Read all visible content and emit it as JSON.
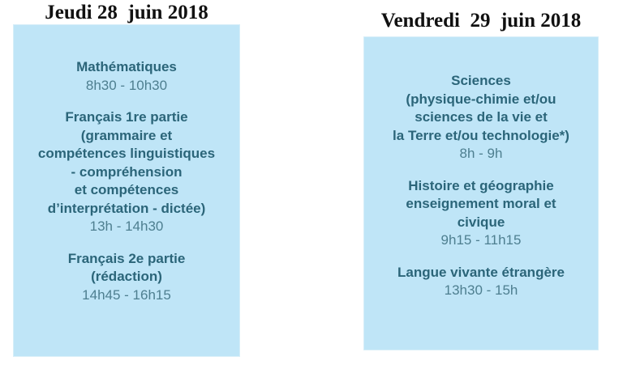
{
  "days": [
    {
      "title": "Jeudi 28  juin 2018",
      "exams": [
        {
          "subject": "Mathématiques",
          "time": "8h30 - 10h30"
        },
        {
          "subject": "Français 1re partie\n(grammaire et\ncompétences linguistiques\n- compréhension\net compétences\nd’interprétation - dictée)",
          "time": "13h - 14h30"
        },
        {
          "subject": "Français 2e partie\n(rédaction)",
          "time": "14h45 - 16h15"
        }
      ]
    },
    {
      "title": "Vendredi  29  juin 2018",
      "exams": [
        {
          "subject": "Sciences\n(physique-chimie et/ou\nsciences de la vie et\nla Terre et/ou technologie*)",
          "time": "8h - 9h"
        },
        {
          "subject": "Histoire et géographie\nenseignement moral et\ncivique",
          "time": "9h15 - 11h15"
        },
        {
          "subject": "Langue vivante étrangère",
          "time": "13h30 - 15h"
        }
      ]
    }
  ],
  "colors": {
    "box": "#bfe5f7",
    "subject": "#2b6579",
    "time": "#4e7f90"
  }
}
